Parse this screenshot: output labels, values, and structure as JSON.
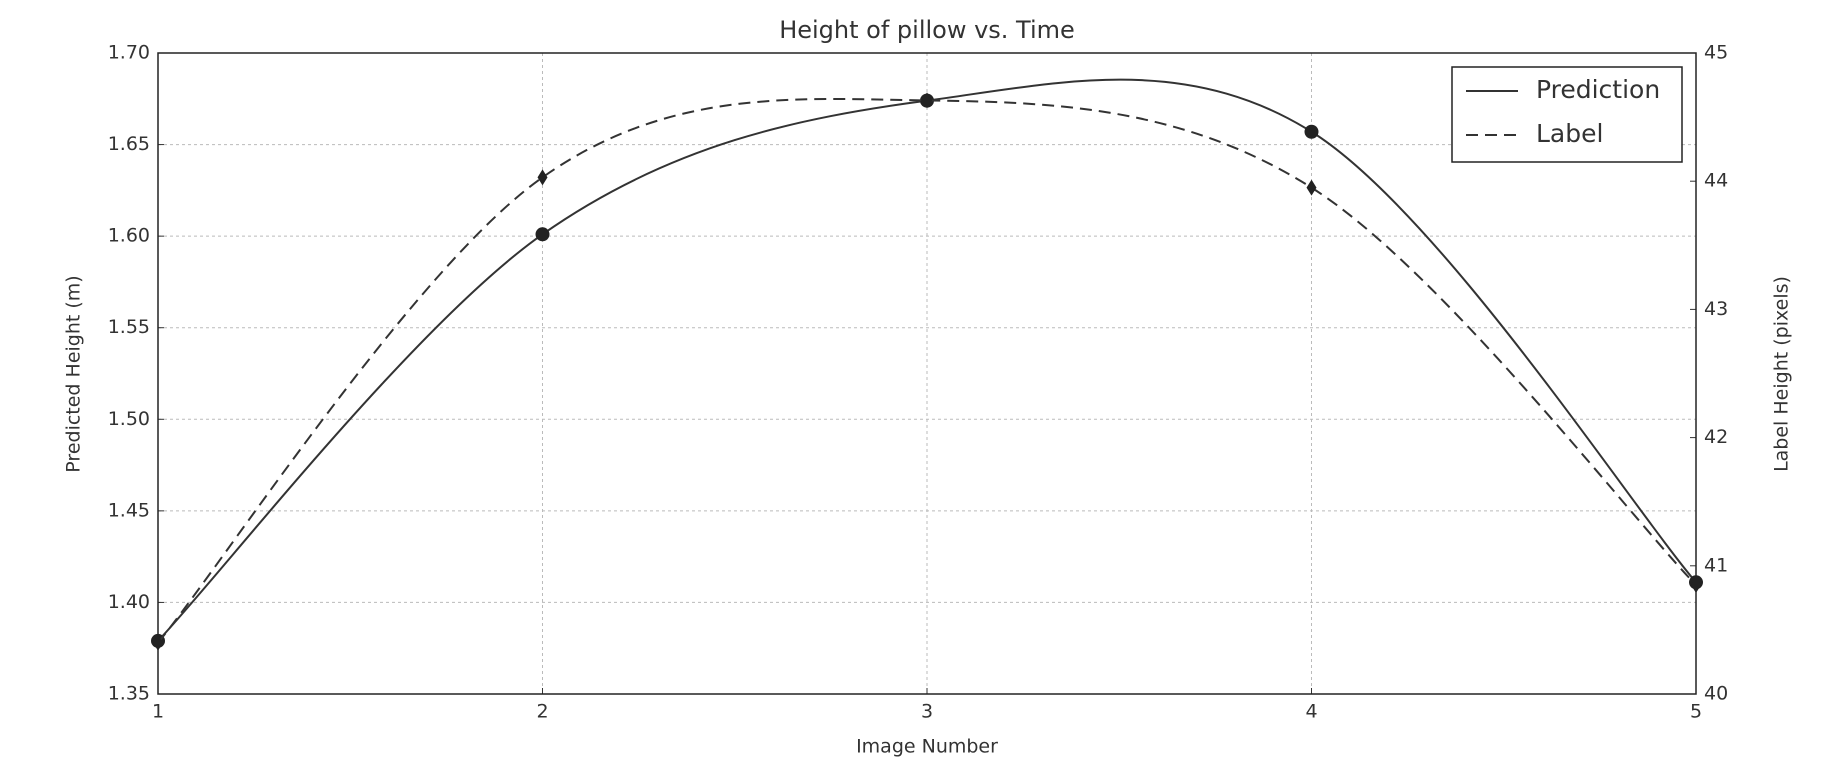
{
  "chart_data": {
    "type": "line",
    "title": "Height of pillow vs. Time",
    "x_label": "Image Number",
    "y_label": "Predicted Height (m)",
    "y2_label": "Label Height (pixels)",
    "x": [
      1,
      2,
      3,
      4,
      5
    ],
    "series": [
      {
        "name": "Prediction",
        "color": "#333333",
        "dash": "solid",
        "marker": "circle",
        "values": [
          1.379,
          1.601,
          1.674,
          1.657,
          1.411
        ]
      },
      {
        "name": "Label",
        "color": "#333333",
        "dash": "dashed",
        "marker": "diamond",
        "axis": "y2",
        "values": [
          40.4,
          44.03,
          44.63,
          43.95,
          40.85
        ]
      }
    ],
    "xlim": [
      1,
      5
    ],
    "xticks": [
      1,
      2,
      3,
      4,
      5
    ],
    "ylim": [
      1.35,
      1.7
    ],
    "yticks": [
      1.35,
      {
        "value": 1.4,
        "label": "1.40"
      },
      1.45,
      {
        "value": 1.5,
        "label": "1.50"
      },
      1.55,
      {
        "value": 1.6,
        "label": "1.60"
      },
      1.65,
      {
        "value": 1.7,
        "label": "1.70"
      }
    ],
    "y2lim": [
      40,
      45
    ],
    "y2ticks": [
      40,
      41,
      42,
      43,
      44,
      45
    ],
    "grid": true,
    "legend": "upper right"
  }
}
